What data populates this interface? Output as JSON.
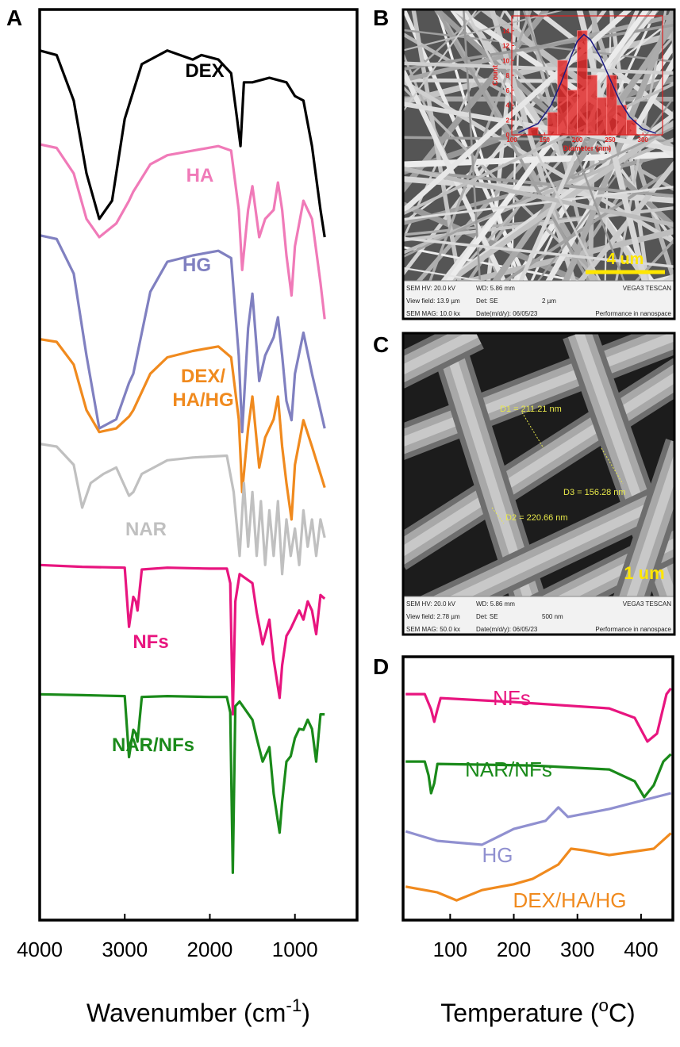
{
  "chart_data": [
    {
      "type": "line",
      "panel": "A",
      "xlabel": {
        "text": "Wavenumber (cm",
        "sup": "-1",
        "close": ")"
      },
      "xlim": [
        4000,
        270
      ],
      "xticks": [
        4000,
        3000,
        2000,
        1000
      ],
      "ylim": [
        0,
        100
      ],
      "series": [
        {
          "name": "DEX",
          "color": "#000000",
          "x": [
            4000,
            3800,
            3600,
            3450,
            3300,
            3150,
            3000,
            2800,
            2500,
            2200,
            2100,
            1900,
            1750,
            1680,
            1640,
            1600,
            1500,
            1300,
            1100,
            1000,
            900,
            800,
            700,
            650
          ],
          "values": [
            95.5,
            95,
            90,
            82,
            77,
            79,
            88,
            94,
            95.5,
            94.5,
            95,
            94.5,
            93,
            88,
            85,
            92,
            92,
            92.5,
            92,
            90.5,
            90,
            85,
            78,
            75
          ]
        },
        {
          "name": "HA",
          "color": "#f07ab8",
          "x": [
            4000,
            3800,
            3600,
            3450,
            3300,
            3100,
            2950,
            2900,
            2700,
            2500,
            2200,
            1900,
            1750,
            1660,
            1620,
            1550,
            1500,
            1420,
            1350,
            1250,
            1200,
            1150,
            1100,
            1040,
            1000,
            900,
            800,
            700,
            650
          ],
          "values": [
            85.2,
            84.8,
            82,
            77,
            75,
            76.5,
            79,
            80,
            83,
            84,
            84.5,
            85,
            84.5,
            78,
            71.4,
            78,
            80.6,
            75,
            77,
            78,
            81,
            78,
            73,
            68.6,
            74,
            79,
            77,
            70,
            66
          ]
        },
        {
          "name": "HG",
          "color": "#8080c0",
          "x": [
            4000,
            3800,
            3600,
            3450,
            3300,
            3100,
            2950,
            2900,
            2700,
            2500,
            2200,
            1900,
            1750,
            1660,
            1620,
            1550,
            1500,
            1420,
            1350,
            1250,
            1200,
            1150,
            1100,
            1040,
            1000,
            900,
            800,
            700,
            650
          ],
          "values": [
            75.2,
            74.8,
            71,
            62,
            54,
            55,
            59,
            60,
            69,
            72.3,
            73,
            73.5,
            72.7,
            62,
            53.6,
            65,
            68.8,
            59.2,
            62,
            64,
            66.2,
            62,
            57,
            54.9,
            60,
            64.5,
            60,
            56,
            54
          ]
        },
        {
          "name": "DEX/ HA/HG",
          "color": "#f08a1e",
          "x": [
            4000,
            3800,
            3600,
            3450,
            3300,
            3100,
            2950,
            2900,
            2700,
            2500,
            2200,
            1900,
            1750,
            1660,
            1620,
            1550,
            1500,
            1420,
            1350,
            1250,
            1200,
            1150,
            1100,
            1040,
            1000,
            900,
            800,
            700,
            650
          ],
          "values": [
            63.8,
            63.5,
            61,
            56,
            53.6,
            54,
            55.3,
            56,
            60,
            61.8,
            62.5,
            63,
            61.8,
            55,
            47,
            54,
            57.5,
            49.7,
            53,
            55,
            57.5,
            52,
            48,
            44,
            50,
            54.9,
            52,
            49,
            47.5
          ]
        },
        {
          "name": "NAR",
          "color": "#c0c0c0",
          "x": [
            4000,
            3800,
            3600,
            3500,
            3400,
            3250,
            3100,
            2950,
            2900,
            2800,
            2500,
            2200,
            1800,
            1720,
            1650,
            1600,
            1550,
            1500,
            1450,
            1400,
            1350,
            1300,
            1250,
            1200,
            1150,
            1100,
            1050,
            1000,
            950,
            900,
            850,
            800,
            750,
            700,
            650
          ],
          "values": [
            52.3,
            52,
            50,
            45.3,
            48,
            49,
            49.7,
            46.6,
            47,
            49,
            50.5,
            50.8,
            51,
            47,
            40,
            48,
            41,
            47,
            40,
            46,
            39,
            45,
            40,
            46,
            38,
            44,
            40,
            43,
            39,
            45,
            41,
            44,
            40,
            44,
            42
          ]
        },
        {
          "name": "NFs",
          "color": "#e8157f",
          "x": [
            4000,
            3500,
            3000,
            2950,
            2900,
            2870,
            2850,
            2800,
            2500,
            2000,
            1800,
            1760,
            1730,
            1700,
            1650,
            1500,
            1450,
            1380,
            1300,
            1250,
            1180,
            1150,
            1100,
            1050,
            1000,
            950,
            900,
            850,
            800,
            750,
            700,
            650
          ],
          "values": [
            39,
            38.8,
            38.7,
            32.2,
            35.5,
            35,
            34,
            38.5,
            38.7,
            38.6,
            38.6,
            37,
            22.6,
            35,
            38,
            37,
            33.8,
            30.3,
            33,
            28.6,
            24.4,
            28,
            31.2,
            32,
            33,
            34,
            33,
            35,
            34,
            31.4,
            35.7,
            35.3
          ]
        },
        {
          "name": "NAR/NFs",
          "color": "#1a8a1a",
          "x": [
            4000,
            3500,
            3000,
            2950,
            2900,
            2870,
            2850,
            2800,
            2500,
            2000,
            1800,
            1760,
            1730,
            1700,
            1650,
            1500,
            1450,
            1380,
            1300,
            1250,
            1180,
            1150,
            1100,
            1050,
            1000,
            950,
            900,
            850,
            800,
            750,
            700,
            650
          ],
          "values": [
            24.8,
            24.7,
            24.6,
            17.9,
            20.9,
            20.5,
            19.6,
            24.5,
            24.6,
            24.5,
            24.5,
            22.8,
            5.2,
            23.5,
            24,
            22,
            20,
            17.4,
            19,
            13.9,
            9.6,
            13,
            17.4,
            18,
            20,
            21,
            20.9,
            22,
            21,
            17.4,
            22.6,
            22.6
          ]
        }
      ]
    },
    {
      "type": "histogram",
      "panel": "B-inset",
      "xlabel": "Diameter (nm)",
      "ylabel": "Count",
      "color": "#e02020",
      "bins": [
        125,
        140,
        155,
        170,
        185,
        200,
        215,
        230,
        245,
        260,
        275,
        290
      ],
      "values": [
        1,
        0,
        3,
        10,
        6,
        14,
        8,
        5,
        8,
        4,
        2
      ],
      "fit": {
        "color": "#1a1a80",
        "x": [
          110,
          140,
          160,
          175,
          190,
          200,
          210,
          220,
          235,
          250,
          265,
          280,
          300,
          320
        ],
        "values": [
          0.3,
          1.5,
          4,
          7,
          10.5,
          12.6,
          13.5,
          12.8,
          10.5,
          7.5,
          4.5,
          2.4,
          0.8,
          0.2
        ]
      },
      "xlim": [
        100,
        330
      ],
      "xticks": [
        100,
        150,
        200,
        250,
        300
      ],
      "ylim": [
        0,
        16
      ],
      "yticks": [
        0,
        2,
        4,
        6,
        8,
        10,
        12,
        14
      ]
    },
    {
      "type": "line",
      "panel": "D",
      "xlabel": {
        "text": "Temperature (",
        "sup": "o",
        "close": "C)"
      },
      "xlim": [
        26,
        450
      ],
      "xticks": [
        100,
        200,
        300,
        400
      ],
      "ylim": [
        0,
        100
      ],
      "series": [
        {
          "name": "NFs",
          "color": "#e8157f",
          "x": [
            30,
            60,
            70,
            75,
            80,
            85,
            200,
            350,
            390,
            410,
            425,
            440,
            447
          ],
          "values": [
            85.8,
            85.8,
            80,
            75.3,
            80,
            84.3,
            82.8,
            80.4,
            76.8,
            67.8,
            70.8,
            85.8,
            88
          ]
        },
        {
          "name": "NAR/NFs",
          "color": "#1a8a1a",
          "x": [
            30,
            60,
            66,
            70,
            75,
            80,
            230,
            350,
            390,
            405,
            420,
            435,
            447
          ],
          "values": [
            60.2,
            60.2,
            55,
            48.2,
            52,
            59.3,
            58.7,
            57.2,
            52.7,
            46.7,
            51.2,
            60.2,
            63
          ]
        },
        {
          "name": "HG",
          "color": "#9090d0",
          "x": [
            30,
            80,
            150,
            200,
            250,
            270,
            285,
            350,
            447
          ],
          "values": [
            33.7,
            30.1,
            28.6,
            34.6,
            37.7,
            42.8,
            39.2,
            42.2,
            48.2
          ]
        },
        {
          "name": "DEX/HA/HG",
          "color": "#f08a1e",
          "x": [
            30,
            80,
            110,
            150,
            200,
            230,
            270,
            290,
            310,
            350,
            420,
            447
          ],
          "values": [
            12.7,
            10.5,
            7.5,
            11.4,
            13.6,
            15.7,
            21.1,
            27.1,
            26.5,
            24.7,
            27.1,
            33
          ]
        }
      ]
    }
  ],
  "panel_labels": [
    "A",
    "B",
    "C",
    "D"
  ],
  "images": [
    {
      "panel": "B",
      "scale_bar": "4 um",
      "info": [
        [
          "SEM HV: 20.0 kV",
          "WD: 5.86 mm",
          "VEGA3 TESCAN"
        ],
        [
          "View field: 13.9 µm",
          "Det: SE",
          "2 µm"
        ],
        [
          "SEM MAG: 10.0 kx",
          "Date(m/d/y): 06/05/23",
          "Performance in nanospace"
        ]
      ]
    },
    {
      "panel": "C",
      "scale_bar": "1 um",
      "measurements": [
        "D1 = 211.21 nm",
        "D2 = 220.66 nm",
        "D3 = 156.28 nm"
      ],
      "info": [
        [
          "SEM HV: 20.0 kV",
          "WD: 5.86 mm",
          "VEGA3 TESCAN"
        ],
        [
          "View field: 2.78 µm",
          "Det: SE",
          "500 nm"
        ],
        [
          "SEM MAG: 50.0 kx",
          "Date(m/d/y): 06/05/23",
          "Performance in nanospace"
        ]
      ]
    }
  ]
}
